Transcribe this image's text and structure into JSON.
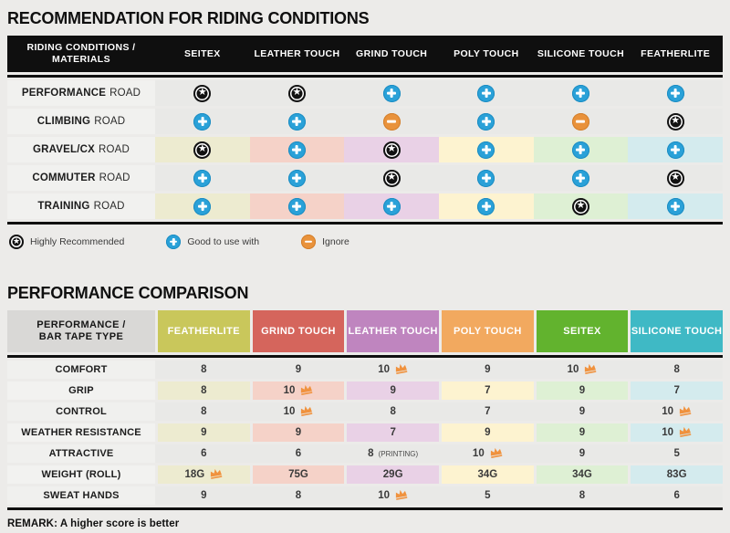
{
  "colors": {
    "page_bg": "#ecebe9",
    "header_black": "#0f0f0f",
    "row_gray": "#e9e9e7",
    "star_icon": "#111111",
    "plus_icon": "#2aa1d8",
    "minus_icon": "#e9923b",
    "crown_icon": "#f0923e",
    "tints": [
      "#edebd0",
      "#f5d2c8",
      "#e9d1e6",
      "#fdf3d0",
      "#def0d4",
      "#d4ebee"
    ],
    "t2_header_label_bg": "#d9d8d6",
    "t2_columns": [
      "#c9c75b",
      "#d5655c",
      "#bf85bf",
      "#f2a95f",
      "#62b32e",
      "#3fb9c5"
    ]
  },
  "recommendation": {
    "title": "RECOMMENDATION FOR RIDING CONDITIONS",
    "corner_header": "RIDING CONDITIONS / MATERIALS",
    "columns": [
      "SEITEX",
      "LEATHER TOUCH",
      "GRIND TOUCH",
      "POLY TOUCH",
      "SILICONE TOUCH",
      "FEATHERLITE"
    ],
    "rows": [
      {
        "condition": "PERFORMANCE",
        "suffix": "ROAD",
        "tinted": false,
        "ratings": [
          "star",
          "star",
          "plus",
          "plus",
          "plus",
          "plus"
        ]
      },
      {
        "condition": "CLIMBING",
        "suffix": "ROAD",
        "tinted": false,
        "ratings": [
          "plus",
          "plus",
          "minus",
          "plus",
          "minus",
          "star"
        ]
      },
      {
        "condition": "GRAVEL/CX",
        "suffix": "ROAD",
        "tinted": true,
        "ratings": [
          "star",
          "plus",
          "star",
          "plus",
          "plus",
          "plus"
        ]
      },
      {
        "condition": "COMMUTER",
        "suffix": "ROAD",
        "tinted": false,
        "ratings": [
          "plus",
          "plus",
          "star",
          "plus",
          "plus",
          "star"
        ]
      },
      {
        "condition": "TRAINING",
        "suffix": "ROAD",
        "tinted": true,
        "ratings": [
          "plus",
          "plus",
          "plus",
          "plus",
          "star",
          "plus"
        ]
      }
    ],
    "legend": [
      {
        "icon": "star",
        "label": "Highly Recommended"
      },
      {
        "icon": "plus",
        "label": "Good to use with"
      },
      {
        "icon": "minus",
        "label": "Ignore"
      }
    ]
  },
  "performance": {
    "title": "PERFORMANCE COMPARISON",
    "corner_header": "PERFORMANCE / BAR TAPE TYPE",
    "columns": [
      "FEATHERLITE",
      "GRIND TOUCH",
      "LEATHER TOUCH",
      "POLY TOUCH",
      "SEITEX",
      "SILICONE TOUCH"
    ],
    "rows": [
      {
        "metric": "COMFORT",
        "tinted": false,
        "values": [
          {
            "v": "8"
          },
          {
            "v": "9"
          },
          {
            "v": "10",
            "crown": true
          },
          {
            "v": "9"
          },
          {
            "v": "10",
            "crown": true
          },
          {
            "v": "8"
          }
        ]
      },
      {
        "metric": "GRIP",
        "tinted": true,
        "values": [
          {
            "v": "8"
          },
          {
            "v": "10",
            "crown": true
          },
          {
            "v": "9"
          },
          {
            "v": "7"
          },
          {
            "v": "9"
          },
          {
            "v": "7"
          }
        ]
      },
      {
        "metric": "CONTROL",
        "tinted": false,
        "values": [
          {
            "v": "8"
          },
          {
            "v": "10",
            "crown": true
          },
          {
            "v": "8"
          },
          {
            "v": "7"
          },
          {
            "v": "9"
          },
          {
            "v": "10",
            "crown": true
          }
        ]
      },
      {
        "metric": "WEATHER RESISTANCE",
        "tinted": true,
        "values": [
          {
            "v": "9"
          },
          {
            "v": "9"
          },
          {
            "v": "7"
          },
          {
            "v": "9"
          },
          {
            "v": "9"
          },
          {
            "v": "10",
            "crown": true
          }
        ]
      },
      {
        "metric": "ATTRACTIVE",
        "tinted": false,
        "values": [
          {
            "v": "6"
          },
          {
            "v": "6"
          },
          {
            "v": "8",
            "suffix": "(PRINTING)"
          },
          {
            "v": "10",
            "crown": true
          },
          {
            "v": "9"
          },
          {
            "v": "5"
          }
        ]
      },
      {
        "metric": "WEIGHT (ROLL)",
        "tinted": true,
        "values": [
          {
            "v": "18G",
            "crown": true
          },
          {
            "v": "75G"
          },
          {
            "v": "29G"
          },
          {
            "v": "34G"
          },
          {
            "v": "34G"
          },
          {
            "v": "83G"
          }
        ]
      },
      {
        "metric": "SWEAT HANDS",
        "tinted": false,
        "values": [
          {
            "v": "9"
          },
          {
            "v": "8"
          },
          {
            "v": "10",
            "crown": true
          },
          {
            "v": "5"
          },
          {
            "v": "8"
          },
          {
            "v": "6"
          }
        ]
      }
    ],
    "remark": "REMARK: A higher score is better"
  }
}
